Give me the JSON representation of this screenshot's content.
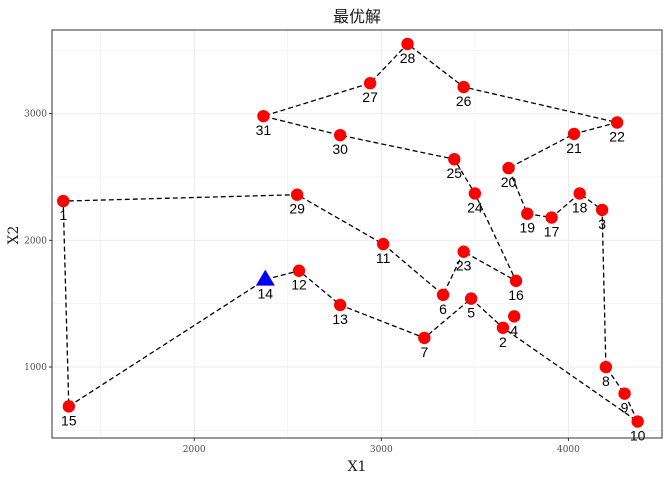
{
  "chart_data": {
    "type": "scatter",
    "title": "最优解",
    "xlabel": "X1",
    "ylabel": "X2",
    "xlim": [
      1240,
      4500
    ],
    "ylim": [
      440,
      3660
    ],
    "x_ticks": [
      2000,
      3000,
      4000
    ],
    "y_ticks": [
      1000,
      2000,
      3000
    ],
    "grid": true,
    "legend": "none",
    "point_color": "#ff0000",
    "start_color": "#0000ff",
    "path_color": "#000000",
    "start_point": {
      "label": "14",
      "x": 2380,
      "y": 1690
    },
    "points": [
      {
        "label": "1",
        "x": 1300,
        "y": 2310
      },
      {
        "label": "2",
        "x": 3650,
        "y": 1310
      },
      {
        "label": "3",
        "x": 4180,
        "y": 2240
      },
      {
        "label": "4",
        "x": 3710,
        "y": 1400
      },
      {
        "label": "5",
        "x": 3480,
        "y": 1540
      },
      {
        "label": "6",
        "x": 3330,
        "y": 1570
      },
      {
        "label": "7",
        "x": 3230,
        "y": 1230
      },
      {
        "label": "8",
        "x": 4200,
        "y": 1000
      },
      {
        "label": "9",
        "x": 4300,
        "y": 790
      },
      {
        "label": "10",
        "x": 4370,
        "y": 570
      },
      {
        "label": "11",
        "x": 3010,
        "y": 1970
      },
      {
        "label": "12",
        "x": 2560,
        "y": 1760
      },
      {
        "label": "13",
        "x": 2780,
        "y": 1490
      },
      {
        "label": "15",
        "x": 1330,
        "y": 690
      },
      {
        "label": "16",
        "x": 3720,
        "y": 1680
      },
      {
        "label": "17",
        "x": 3910,
        "y": 2180
      },
      {
        "label": "18",
        "x": 4060,
        "y": 2370
      },
      {
        "label": "19",
        "x": 3780,
        "y": 2210
      },
      {
        "label": "20",
        "x": 3680,
        "y": 2570
      },
      {
        "label": "21",
        "x": 4030,
        "y": 2840
      },
      {
        "label": "22",
        "x": 4260,
        "y": 2930
      },
      {
        "label": "23",
        "x": 3440,
        "y": 1910
      },
      {
        "label": "24",
        "x": 3500,
        "y": 2370
      },
      {
        "label": "25",
        "x": 3390,
        "y": 2640
      },
      {
        "label": "26",
        "x": 3440,
        "y": 3210
      },
      {
        "label": "27",
        "x": 2940,
        "y": 3240
      },
      {
        "label": "28",
        "x": 3140,
        "y": 3550
      },
      {
        "label": "29",
        "x": 2550,
        "y": 2360
      },
      {
        "label": "30",
        "x": 2780,
        "y": 2830
      },
      {
        "label": "31",
        "x": 2370,
        "y": 2980
      }
    ],
    "route": [
      "14",
      "12",
      "13",
      "7",
      "5",
      "2",
      "10",
      "9",
      "8",
      "3",
      "18",
      "17",
      "19",
      "20",
      "21",
      "22",
      "26",
      "28",
      "27",
      "31",
      "30",
      "25",
      "24",
      "16",
      "23",
      "6",
      "11",
      "29",
      "1",
      "15",
      "14"
    ]
  }
}
